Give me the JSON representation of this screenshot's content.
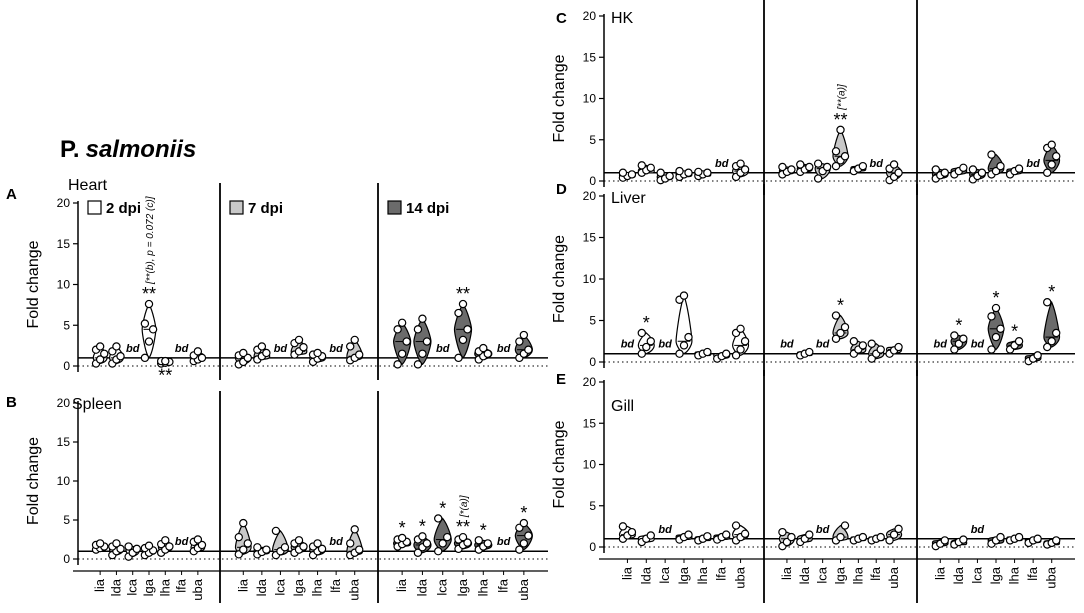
{
  "title": {
    "prefix": "P.",
    "species": "salmoniis"
  },
  "genes": [
    "lia",
    "lda",
    "lca",
    "lga",
    "lha",
    "lfa",
    "uba"
  ],
  "timepoints": [
    {
      "label": "2 dpi",
      "color": "#ffffff"
    },
    {
      "label": "7 dpi",
      "color": "#c8c8c8"
    },
    {
      "label": "14 dpi",
      "color": "#6b6b6b"
    }
  ],
  "ylabel": "Fold change",
  "yticks": [
    0,
    5,
    10,
    15,
    20
  ],
  "bd_label": "bd",
  "chart_data": [
    {
      "type": "violin",
      "panel": "A",
      "tissue": "Heart",
      "ylim": [
        0,
        20
      ],
      "xlabel": "",
      "ylabel": "Fold change",
      "groups": {
        "2 dpi": {
          "lia": {
            "median": 1.0,
            "points": [
              0.3,
              0.8,
              1.5,
              2.0,
              2.4
            ]
          },
          "lda": {
            "median": 1.0,
            "points": [
              0.3,
              0.8,
              1.2,
              1.8,
              2.4
            ]
          },
          "lca": {
            "bd": true
          },
          "lga": {
            "median": 4.5,
            "points": [
              1.0,
              3.0,
              4.5,
              5.2,
              7.6
            ],
            "sig": "**",
            "note": "[**(b), p = 0.072 (c)]"
          },
          "lha": {
            "median": 0.5,
            "points": [
              0.3,
              0.4,
              0.5,
              0.6,
              0.6
            ],
            "sig": "**",
            "sig_below": true
          },
          "lfa": {
            "bd": true
          },
          "uba": {
            "median": 1.0,
            "points": [
              0.6,
              0.8,
              1.0,
              1.3,
              1.8
            ]
          }
        },
        "7 dpi": {
          "lia": {
            "median": 1.0,
            "points": [
              0.2,
              0.5,
              1.0,
              1.3,
              1.6
            ]
          },
          "lda": {
            "median": 1.2,
            "points": [
              0.8,
              1.2,
              1.6,
              2.0,
              2.4
            ]
          },
          "lca": {
            "bd": true
          },
          "lga": {
            "median": 1.8,
            "points": [
              1.4,
              1.8,
              2.3,
              2.8,
              3.2
            ]
          },
          "lha": {
            "median": 1.0,
            "points": [
              0.5,
              0.9,
              1.2,
              1.4,
              1.6
            ]
          },
          "lfa": {
            "bd": true
          },
          "uba": {
            "median": 1.2,
            "points": [
              0.7,
              1.0,
              1.4,
              2.4,
              3.2
            ]
          }
        },
        "14 dpi": {
          "lia": {
            "median": 3.0,
            "points": [
              0.2,
              1.5,
              3.0,
              4.5,
              5.3
            ]
          },
          "lda": {
            "median": 3.0,
            "points": [
              0.2,
              1.5,
              3.0,
              4.5,
              5.8
            ]
          },
          "lca": {
            "bd": true
          },
          "lga": {
            "median": 4.5,
            "points": [
              1.0,
              3.2,
              4.5,
              6.5,
              7.6
            ],
            "sig": "**"
          },
          "lha": {
            "median": 1.5,
            "points": [
              0.8,
              1.2,
              1.5,
              1.8,
              2.2
            ]
          },
          "lfa": {
            "bd": true
          },
          "uba": {
            "median": 2.0,
            "points": [
              1.0,
              1.5,
              2.0,
              3.0,
              3.8
            ]
          }
        }
      }
    },
    {
      "type": "violin",
      "panel": "B",
      "tissue": "Spleen",
      "ylim": [
        0,
        20
      ],
      "xlabel": "",
      "ylabel": "Fold change",
      "groups": {
        "2 dpi": {
          "lia": {
            "median": 1.5,
            "points": [
              1.2,
              1.4,
              1.6,
              1.8,
              2.0
            ]
          },
          "lda": {
            "median": 1.2,
            "points": [
              0.5,
              1.0,
              1.3,
              1.6,
              2.0
            ]
          },
          "lca": {
            "median": 1.2,
            "points": [
              0.3,
              0.8,
              1.3,
              1.6
            ]
          },
          "lga": {
            "median": 1.0,
            "points": [
              0.5,
              0.8,
              1.1,
              1.4,
              1.7
            ]
          },
          "lha": {
            "median": 1.5,
            "points": [
              0.8,
              1.2,
              1.6,
              1.9,
              2.4
            ]
          },
          "lfa": {
            "bd": true
          },
          "uba": {
            "median": 1.5,
            "points": [
              1.0,
              1.4,
              1.8,
              2.2,
              2.5
            ]
          }
        },
        "7 dpi": {
          "lia": {
            "median": 1.5,
            "points": [
              0.6,
              1.2,
              2.0,
              2.8,
              4.6
            ]
          },
          "lda": {
            "median": 1.0,
            "points": [
              0.6,
              0.9,
              1.2,
              1.5
            ]
          },
          "lca": {
            "median": 1.2,
            "points": [
              0.5,
              1.0,
              1.5,
              3.6
            ]
          },
          "lga": {
            "median": 1.5,
            "points": [
              0.8,
              1.2,
              1.6,
              2.0,
              2.4
            ]
          },
          "lha": {
            "median": 1.2,
            "points": [
              0.5,
              1.0,
              1.3,
              1.6,
              2.0
            ]
          },
          "lfa": {
            "bd": true
          },
          "uba": {
            "median": 1.0,
            "points": [
              0.5,
              0.8,
              1.2,
              2.0,
              3.8
            ]
          }
        },
        "14 dpi": {
          "lia": {
            "median": 2.0,
            "points": [
              1.6,
              1.9,
              2.2,
              2.5,
              2.7
            ],
            "sig": "*"
          },
          "lda": {
            "median": 1.8,
            "points": [
              0.8,
              1.5,
              2.0,
              2.5,
              2.9
            ],
            "sig": "*"
          },
          "lca": {
            "median": 2.5,
            "points": [
              1.0,
              2.0,
              2.8,
              5.2
            ],
            "sig": "*"
          },
          "lga": {
            "median": 2.0,
            "points": [
              1.3,
              1.8,
              2.1,
              2.5,
              2.8
            ],
            "sig": "**",
            "note": "[*(a)]"
          },
          "lha": {
            "median": 1.8,
            "points": [
              1.2,
              1.6,
              2.0,
              2.4
            ],
            "sig": "*"
          },
          "lfa": {
            "bd": true
          },
          "uba": {
            "median": 3.0,
            "points": [
              1.2,
              2.0,
              3.0,
              4.0,
              4.6
            ],
            "sig": "*"
          }
        }
      }
    },
    {
      "type": "violin",
      "panel": "C",
      "tissue": "HK",
      "ylim": [
        0,
        20
      ],
      "xlabel": "",
      "ylabel": "Fold change",
      "groups": {
        "2 dpi": {
          "lia": {
            "median": 0.7,
            "points": [
              0.4,
              0.6,
              0.8,
              1.0
            ]
          },
          "lda": {
            "median": 1.2,
            "points": [
              1.0,
              1.3,
              1.6,
              1.9
            ]
          },
          "lca": {
            "median": 0.5,
            "points": [
              0.1,
              0.3,
              0.6,
              1.0
            ]
          },
          "lga": {
            "median": 0.8,
            "points": [
              0.5,
              0.8,
              1.0,
              1.2
            ]
          },
          "lha": {
            "median": 0.8,
            "points": [
              0.6,
              0.8,
              1.0,
              1.1
            ]
          },
          "lfa": {
            "bd": true
          },
          "uba": {
            "median": 1.2,
            "points": [
              0.5,
              1.0,
              1.4,
              1.8,
              2.1
            ]
          }
        },
        "7 dpi": {
          "lia": {
            "median": 1.2,
            "points": [
              0.8,
              1.1,
              1.4,
              1.7
            ]
          },
          "lda": {
            "median": 1.5,
            "points": [
              1.1,
              1.4,
              1.7,
              2.0
            ]
          },
          "lca": {
            "median": 1.5,
            "points": [
              0.3,
              1.2,
              1.7,
              2.1
            ]
          },
          "lga": {
            "median": 3.0,
            "points": [
              1.8,
              2.5,
              3.0,
              3.6,
              6.2
            ],
            "sig": "**",
            "note": "[**(a)]"
          },
          "lha": {
            "median": 1.5,
            "points": [
              1.2,
              1.5,
              1.8
            ]
          },
          "lfa": {
            "bd": true
          },
          "uba": {
            "median": 1.0,
            "points": [
              0.1,
              0.5,
              1.0,
              1.5,
              2.0
            ]
          }
        },
        "14 dpi": {
          "lia": {
            "median": 0.8,
            "points": [
              0.3,
              0.7,
              1.0,
              1.4
            ]
          },
          "lda": {
            "median": 1.2,
            "points": [
              0.8,
              1.2,
              1.6
            ]
          },
          "lca": {
            "median": 0.8,
            "points": [
              0.2,
              0.6,
              1.0,
              1.4
            ]
          },
          "lga": {
            "median": 1.5,
            "points": [
              0.8,
              1.2,
              1.8,
              3.2
            ]
          },
          "lha": {
            "median": 1.2,
            "points": [
              0.8,
              1.2,
              1.5
            ]
          },
          "lfa": {
            "bd": true
          },
          "uba": {
            "median": 2.5,
            "points": [
              1.0,
              2.0,
              3.0,
              4.0,
              4.4
            ]
          }
        }
      }
    },
    {
      "type": "violin",
      "panel": "D",
      "tissue": "Liver",
      "ylim": [
        0,
        20
      ],
      "xlabel": "",
      "ylabel": "Fold change",
      "groups": {
        "2 dpi": {
          "lia": {
            "bd": true
          },
          "lda": {
            "median": 2.0,
            "points": [
              1.0,
              1.8,
              2.5,
              3.5
            ],
            "sig": "*"
          },
          "lca": {
            "bd": true
          },
          "lga": {
            "median": 2.5,
            "points": [
              1.0,
              2.0,
              3.0,
              7.5,
              8.0
            ]
          },
          "lha": {
            "median": 1.0,
            "points": [
              0.8,
              1.0,
              1.2
            ]
          },
          "lfa": {
            "median": 0.8,
            "points": [
              0.4,
              0.7,
              1.0
            ]
          },
          "uba": {
            "median": 2.0,
            "points": [
              0.8,
              1.5,
              2.5,
              3.5,
              4.0
            ]
          }
        },
        "7 dpi": {
          "lia": {
            "bd": true
          },
          "lda": {
            "median": 1.0,
            "points": [
              0.8,
              1.0,
              1.2
            ]
          },
          "lca": {
            "bd": true
          },
          "lga": {
            "median": 3.5,
            "points": [
              2.8,
              3.5,
              4.2,
              5.6
            ],
            "sig": "*"
          },
          "lha": {
            "median": 1.5,
            "points": [
              1.0,
              1.5,
              2.0,
              2.5
            ]
          },
          "lfa": {
            "median": 1.0,
            "points": [
              0.4,
              1.0,
              1.5,
              2.2
            ]
          },
          "uba": {
            "median": 1.5,
            "points": [
              1.0,
              1.4,
              1.8
            ]
          }
        },
        "14 dpi": {
          "lia": {
            "bd": true
          },
          "lda": {
            "median": 2.5,
            "points": [
              1.5,
              2.2,
              2.8,
              3.2
            ],
            "sig": "*"
          },
          "lca": {
            "bd": true
          },
          "lga": {
            "median": 4.0,
            "points": [
              1.5,
              3.0,
              4.0,
              5.5,
              6.5
            ],
            "sig": "*"
          },
          "lha": {
            "median": 2.0,
            "points": [
              1.5,
              2.0,
              2.5
            ],
            "sig": "*"
          },
          "lfa": {
            "median": 0.5,
            "points": [
              0.1,
              0.4,
              0.8
            ]
          },
          "uba": {
            "median": 3.0,
            "points": [
              1.8,
              2.5,
              3.5,
              7.2
            ],
            "sig": "*"
          }
        }
      }
    },
    {
      "type": "violin",
      "panel": "E",
      "tissue": "Gill",
      "ylim": [
        0,
        20
      ],
      "xlabel": "",
      "ylabel": "Fold change",
      "groups": {
        "2 dpi": {
          "lia": {
            "median": 1.5,
            "points": [
              1.0,
              1.4,
              1.8,
              2.5
            ]
          },
          "lda": {
            "median": 1.0,
            "points": [
              0.6,
              1.0,
              1.4
            ]
          },
          "lca": {
            "bd": true
          },
          "lga": {
            "median": 1.2,
            "points": [
              0.9,
              1.2,
              1.5
            ]
          },
          "lha": {
            "median": 1.0,
            "points": [
              0.8,
              1.0,
              1.3
            ]
          },
          "lfa": {
            "median": 1.2,
            "points": [
              0.9,
              1.2,
              1.5
            ]
          },
          "uba": {
            "median": 1.5,
            "points": [
              0.8,
              1.2,
              1.6,
              2.6
            ]
          }
        },
        "7 dpi": {
          "lia": {
            "median": 1.0,
            "points": [
              0.1,
              0.6,
              1.2,
              1.8
            ]
          },
          "lda": {
            "median": 1.0,
            "points": [
              0.6,
              1.0,
              1.5
            ]
          },
          "lca": {
            "bd": true
          },
          "lga": {
            "median": 1.2,
            "points": [
              0.8,
              1.2,
              2.6
            ]
          },
          "lha": {
            "median": 1.0,
            "points": [
              0.8,
              1.0,
              1.2
            ]
          },
          "lfa": {
            "median": 1.0,
            "points": [
              0.8,
              1.0,
              1.2
            ]
          },
          "uba": {
            "median": 1.5,
            "points": [
              0.8,
              1.5,
              2.2
            ]
          }
        },
        "14 dpi": {
          "lia": {
            "median": 0.5,
            "points": [
              0.1,
              0.4,
              0.8
            ]
          },
          "lda": {
            "median": 0.5,
            "points": [
              0.3,
              0.6,
              0.9
            ]
          },
          "lca": {
            "bd": true
          },
          "lga": {
            "median": 0.8,
            "points": [
              0.4,
              0.8,
              1.2
            ]
          },
          "lha": {
            "median": 1.0,
            "points": [
              0.8,
              1.0,
              1.2
            ]
          },
          "lfa": {
            "median": 0.8,
            "points": [
              0.5,
              0.8,
              1.0
            ]
          },
          "uba": {
            "median": 0.5,
            "points": [
              0.3,
              0.5,
              0.8
            ]
          }
        }
      }
    }
  ]
}
